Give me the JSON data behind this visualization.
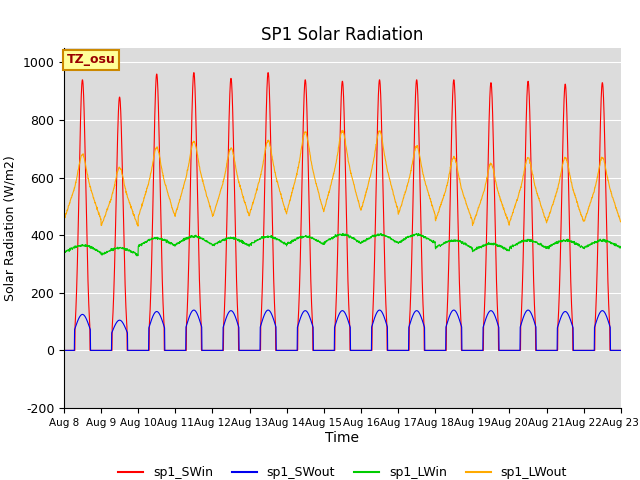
{
  "title": "SP1 Solar Radiation",
  "ylabel": "Solar Radiation (W/m2)",
  "xlabel": "Time",
  "ylim": [
    -200,
    1050
  ],
  "background_color": "#dcdcdc",
  "fig_background": "#ffffff",
  "tz_label": "TZ_osu",
  "tz_bg": "#ffff99",
  "tz_border": "#cc8800",
  "tz_text_color": "#990000",
  "colors": {
    "sp1_SWin": "#ff0000",
    "sp1_SWout": "#0000ee",
    "sp1_LWin": "#00cc00",
    "sp1_LWout": "#ffaa00"
  },
  "x_tick_labels": [
    "Aug 8",
    "Aug 9",
    "Aug 10",
    "Aug 11",
    "Aug 12",
    "Aug 13",
    "Aug 14",
    "Aug 15",
    "Aug 16",
    "Aug 17",
    "Aug 18",
    "Aug 19",
    "Aug 20",
    "Aug 21",
    "Aug 22",
    "Aug 23"
  ],
  "num_days": 15,
  "SWin_peaks": [
    940,
    880,
    960,
    965,
    945,
    965,
    940,
    935,
    940,
    940,
    940,
    930,
    935,
    925,
    930
  ],
  "SWout_peaks": [
    125,
    105,
    135,
    140,
    138,
    140,
    138,
    138,
    140,
    138,
    140,
    138,
    140,
    135,
    138
  ],
  "LWin_bases": [
    325,
    318,
    348,
    352,
    348,
    352,
    353,
    358,
    358,
    358,
    342,
    332,
    342,
    342,
    342
  ],
  "LWin_amp": [
    40,
    38,
    42,
    43,
    42,
    43,
    43,
    44,
    44,
    44,
    40,
    38,
    40,
    40,
    40
  ],
  "LWout_bases": [
    370,
    355,
    375,
    378,
    375,
    378,
    378,
    382,
    382,
    382,
    368,
    358,
    362,
    362,
    362
  ],
  "LWout_broad_amp": [
    230,
    210,
    245,
    260,
    245,
    262,
    285,
    285,
    285,
    245,
    225,
    215,
    230,
    230,
    230
  ],
  "LWout_sharp_amp": [
    80,
    70,
    85,
    88,
    82,
    88,
    95,
    95,
    95,
    82,
    78,
    75,
    78,
    78,
    78
  ]
}
